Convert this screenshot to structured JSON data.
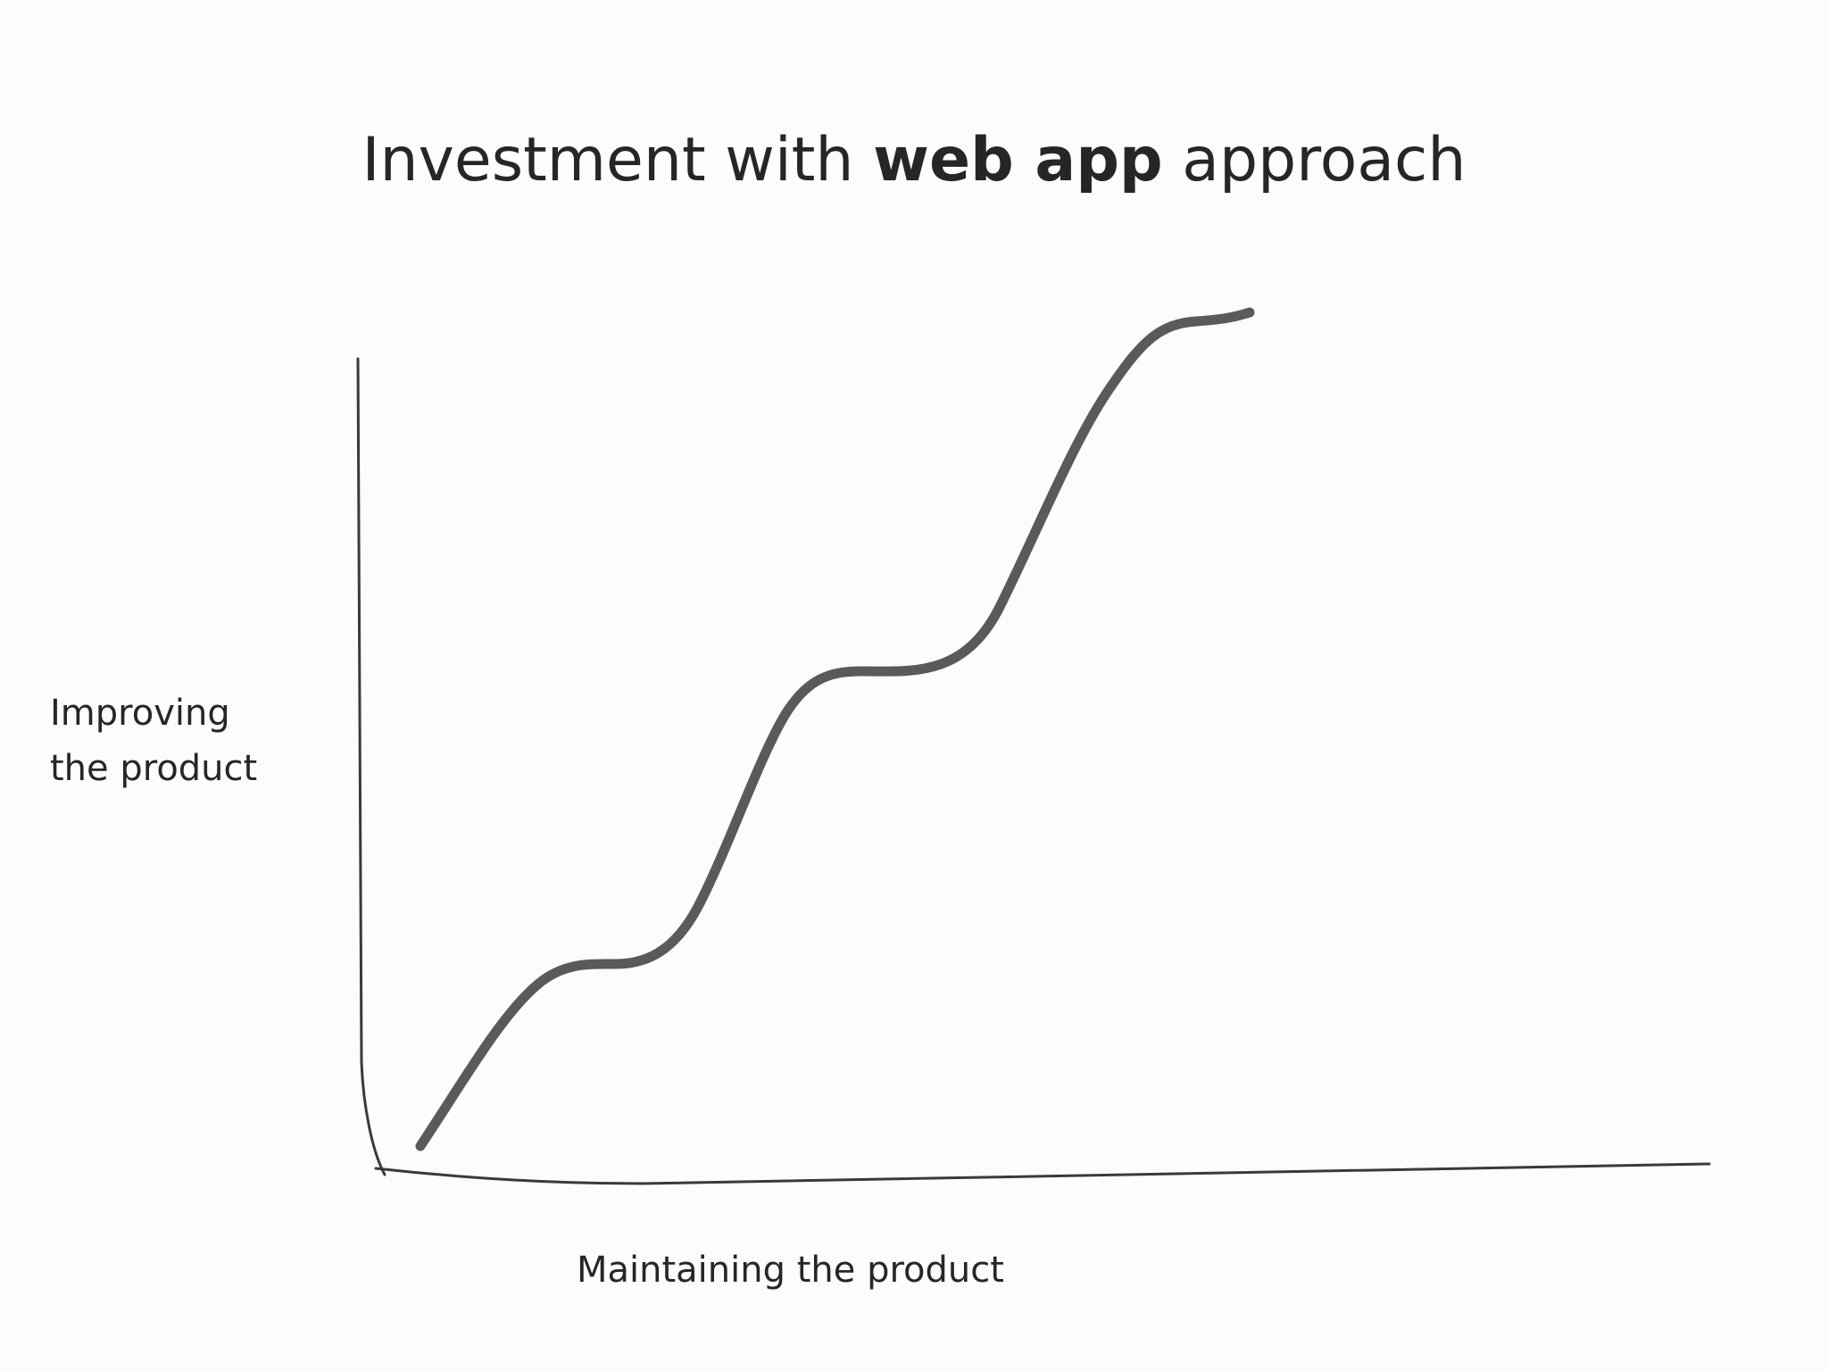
{
  "title": {
    "part1": "Investment with ",
    "bold": "web app",
    "part2": " approach"
  },
  "y_label": {
    "line1": "Improving",
    "line2": "the product"
  },
  "x_label": "Maintaining the product"
}
